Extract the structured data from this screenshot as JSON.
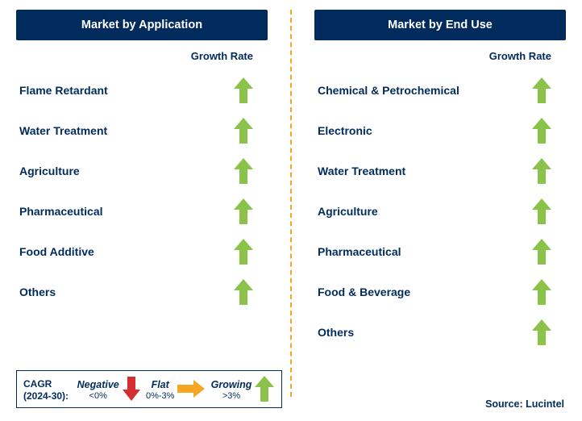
{
  "colors": {
    "header_bg": "#002b5c",
    "header_text": "#ffffff",
    "text": "#002b5c",
    "divider": "#f5a623",
    "arrow_growing": "#8bc34a",
    "arrow_flat": "#f5a623",
    "arrow_negative": "#d32f2f",
    "legend_border": "#002b5c",
    "background": "#ffffff"
  },
  "left_panel": {
    "title": "Market by Application",
    "growth_header": "Growth Rate",
    "rows": [
      {
        "label": "Flame Retardant",
        "growth": "growing"
      },
      {
        "label": "Water Treatment",
        "growth": "growing"
      },
      {
        "label": "Agriculture",
        "growth": "growing"
      },
      {
        "label": "Pharmaceutical",
        "growth": "growing"
      },
      {
        "label": "Food Additive",
        "growth": "growing"
      },
      {
        "label": "Others",
        "growth": "growing"
      }
    ]
  },
  "right_panel": {
    "title": "Market by End Use",
    "growth_header": "Growth Rate",
    "rows": [
      {
        "label": "Chemical & Petrochemical",
        "growth": "growing"
      },
      {
        "label": "Electronic",
        "growth": "growing"
      },
      {
        "label": "Water Treatment",
        "growth": "growing"
      },
      {
        "label": "Agriculture",
        "growth": "growing"
      },
      {
        "label": "Pharmaceutical",
        "growth": "growing"
      },
      {
        "label": "Food & Beverage",
        "growth": "growing"
      },
      {
        "label": "Others",
        "growth": "growing"
      }
    ]
  },
  "legend": {
    "prefix_line1": "CAGR",
    "prefix_line2": "(2024-30):",
    "items": [
      {
        "label": "Negative",
        "range": "<0%",
        "icon": "down"
      },
      {
        "label": "Flat",
        "range": "0%-3%",
        "icon": "right"
      },
      {
        "label": "Growing",
        "range": ">3%",
        "icon": "up"
      }
    ]
  },
  "source": "Source: Lucintel"
}
